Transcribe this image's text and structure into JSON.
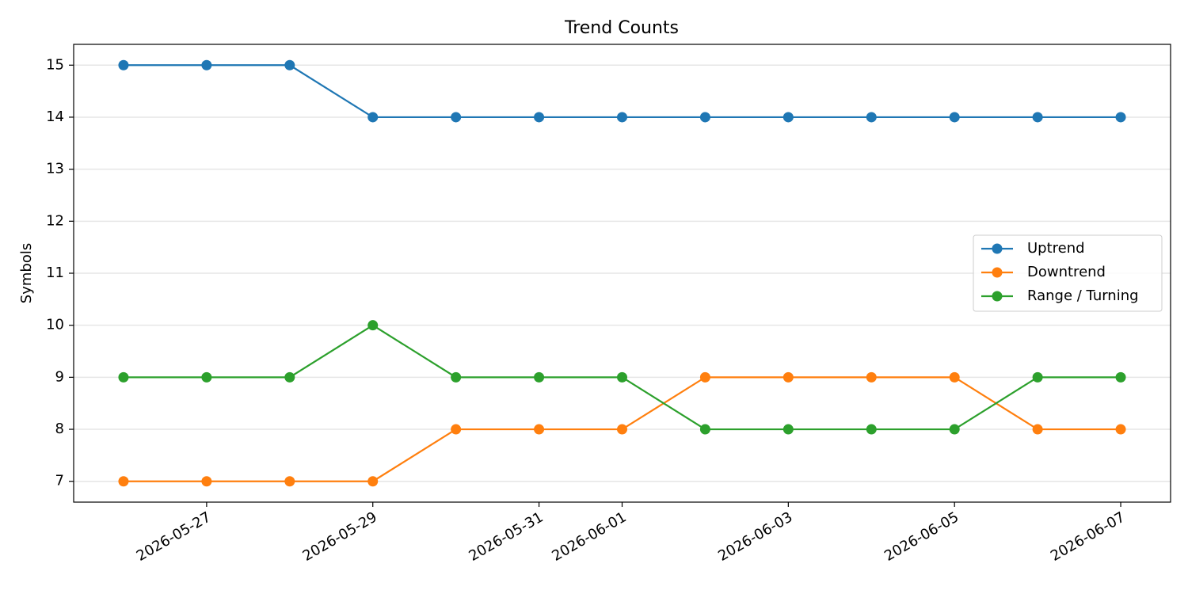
{
  "chart_data": {
    "type": "line",
    "title": "Trend Counts",
    "y_label": "Symbols",
    "x": [
      "2026-05-26",
      "2026-05-27",
      "2026-05-28",
      "2026-05-29",
      "2026-05-30",
      "2026-05-31",
      "2026-06-01",
      "2026-06-02",
      "2026-06-03",
      "2026-06-04",
      "2026-06-05",
      "2026-06-06",
      "2026-06-07"
    ],
    "series": [
      {
        "name": "Uptrend",
        "color": "#1f77b4",
        "values": [
          15,
          15,
          15,
          14,
          14,
          14,
          14,
          14,
          14,
          14,
          14,
          14,
          14
        ]
      },
      {
        "name": "Downtrend",
        "color": "#ff7f0e",
        "values": [
          7,
          7,
          7,
          7,
          8,
          8,
          8,
          9,
          9,
          9,
          9,
          8,
          8
        ]
      },
      {
        "name": "Range / Turning",
        "color": "#2ca02c",
        "values": [
          9,
          9,
          9,
          10,
          9,
          9,
          9,
          8,
          8,
          8,
          8,
          9,
          9
        ]
      }
    ],
    "xlim": [
      "2026-05-26",
      "2026-06-07"
    ],
    "xticks": [
      "2026-05-27",
      "2026-05-29",
      "2026-05-31",
      "2026-06-01",
      "2026-06-03",
      "2026-06-05",
      "2026-06-07"
    ],
    "ylim": [
      6.6,
      15.4
    ],
    "yticks": [
      7,
      8,
      9,
      10,
      11,
      12,
      13,
      14,
      15
    ],
    "grid": "y",
    "legend": "center right"
  }
}
